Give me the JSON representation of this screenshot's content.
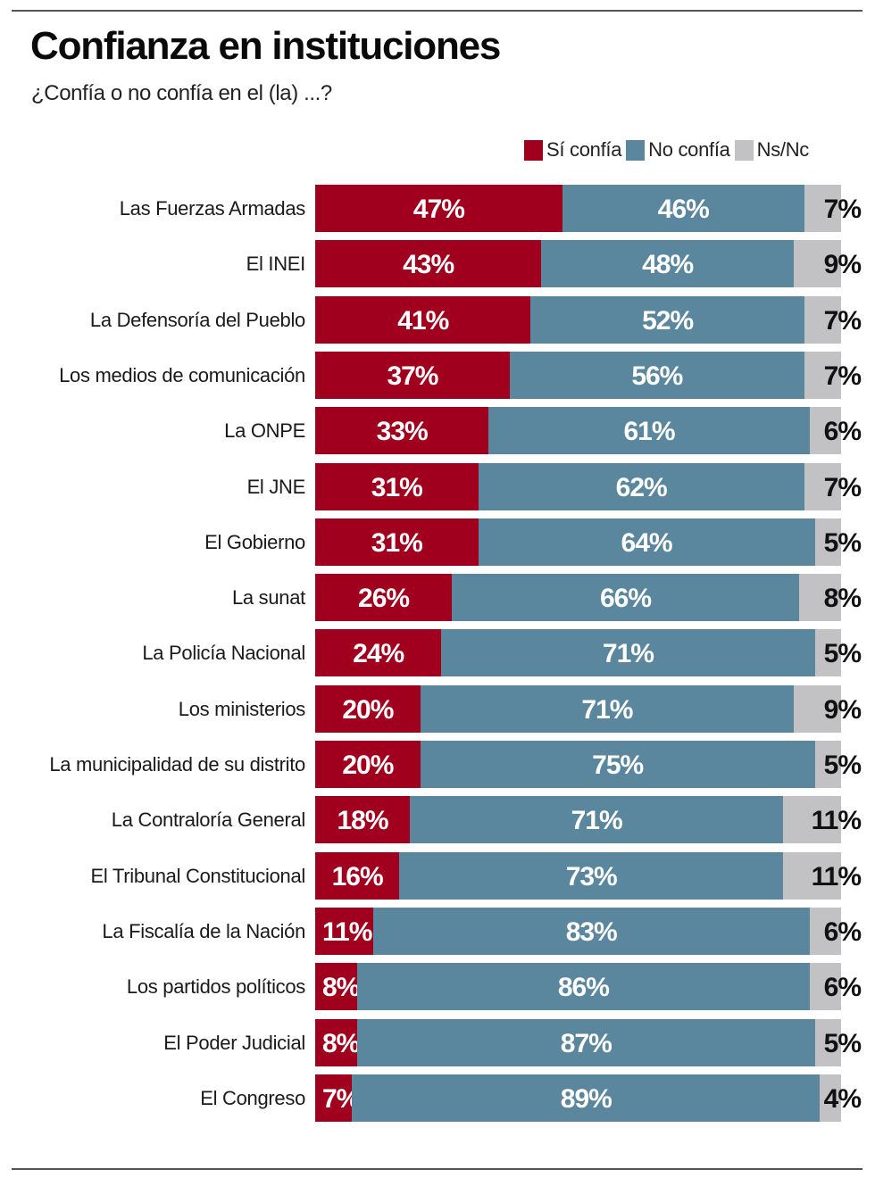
{
  "header": {
    "title": "Confianza en instituciones",
    "subtitle": "¿Confía o no confía en el (la) ...?"
  },
  "legend": [
    {
      "label": "Sí confía",
      "color": "#a0001d"
    },
    {
      "label": "No confía",
      "color": "#5a879e"
    },
    {
      "label": "Ns/Nc",
      "color": "#c2c2c4"
    }
  ],
  "chart_data": {
    "type": "bar",
    "orientation": "horizontal",
    "stacked": true,
    "normalized_to": 100,
    "title": "Confianza en instituciones",
    "subtitle": "¿Confía o no confía en el (la) ...?",
    "xlabel": "",
    "ylabel": "",
    "legend_position": "top-right",
    "grid": false,
    "categories": [
      "Las Fuerzas Armadas",
      "El INEI",
      "La Defensoría del Pueblo",
      "Los medios de comunicación",
      "La ONPE",
      "El JNE",
      "El Gobierno",
      "La sunat",
      "La Policía Nacional",
      "Los ministerios",
      "La municipalidad de su distrito",
      "La Contraloría General",
      "El Tribunal Constitucional",
      "La Fiscalía de la Nación",
      "Los partidos políticos",
      "El Poder Judicial",
      "El Congreso"
    ],
    "series": [
      {
        "name": "Sí confía",
        "color": "#a0001d",
        "values": [
          47,
          43,
          41,
          37,
          33,
          31,
          31,
          26,
          24,
          20,
          20,
          18,
          16,
          11,
          8,
          8,
          7
        ]
      },
      {
        "name": "No confía",
        "color": "#5a879e",
        "values": [
          46,
          48,
          52,
          56,
          61,
          62,
          64,
          66,
          71,
          71,
          75,
          71,
          73,
          83,
          86,
          87,
          89
        ]
      },
      {
        "name": "Ns/Nc",
        "color": "#c2c2c4",
        "values": [
          7,
          9,
          7,
          7,
          6,
          7,
          5,
          8,
          5,
          9,
          5,
          11,
          11,
          6,
          6,
          5,
          4
        ]
      }
    ],
    "value_suffix": "%"
  }
}
